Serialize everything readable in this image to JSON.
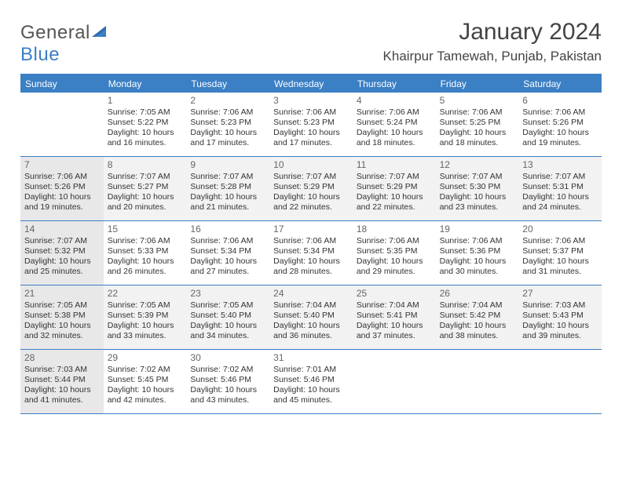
{
  "brand": {
    "text1": "General",
    "text2": "Blue"
  },
  "title": "January 2024",
  "location": "Khairpur Tamewah, Punjab, Pakistan",
  "dayHeaders": [
    "Sunday",
    "Monday",
    "Tuesday",
    "Wednesday",
    "Thursday",
    "Friday",
    "Saturday"
  ],
  "colors": {
    "accent": "#3b7fc4",
    "altRow": "#f2f2f2",
    "shadeCell": "#e8e8e8",
    "text": "#333333",
    "headerText": "#ffffff"
  },
  "weeks": [
    {
      "alt": false,
      "cells": [
        {
          "day": "",
          "sunrise": "",
          "sunset": "",
          "daylight": ""
        },
        {
          "day": "1",
          "sunrise": "Sunrise: 7:05 AM",
          "sunset": "Sunset: 5:22 PM",
          "daylight": "Daylight: 10 hours and 16 minutes."
        },
        {
          "day": "2",
          "sunrise": "Sunrise: 7:06 AM",
          "sunset": "Sunset: 5:23 PM",
          "daylight": "Daylight: 10 hours and 17 minutes."
        },
        {
          "day": "3",
          "sunrise": "Sunrise: 7:06 AM",
          "sunset": "Sunset: 5:23 PM",
          "daylight": "Daylight: 10 hours and 17 minutes."
        },
        {
          "day": "4",
          "sunrise": "Sunrise: 7:06 AM",
          "sunset": "Sunset: 5:24 PM",
          "daylight": "Daylight: 10 hours and 18 minutes."
        },
        {
          "day": "5",
          "sunrise": "Sunrise: 7:06 AM",
          "sunset": "Sunset: 5:25 PM",
          "daylight": "Daylight: 10 hours and 18 minutes."
        },
        {
          "day": "6",
          "sunrise": "Sunrise: 7:06 AM",
          "sunset": "Sunset: 5:26 PM",
          "daylight": "Daylight: 10 hours and 19 minutes."
        }
      ]
    },
    {
      "alt": true,
      "cells": [
        {
          "day": "7",
          "shade": true,
          "sunrise": "Sunrise: 7:06 AM",
          "sunset": "Sunset: 5:26 PM",
          "daylight": "Daylight: 10 hours and 19 minutes."
        },
        {
          "day": "8",
          "sunrise": "Sunrise: 7:07 AM",
          "sunset": "Sunset: 5:27 PM",
          "daylight": "Daylight: 10 hours and 20 minutes."
        },
        {
          "day": "9",
          "sunrise": "Sunrise: 7:07 AM",
          "sunset": "Sunset: 5:28 PM",
          "daylight": "Daylight: 10 hours and 21 minutes."
        },
        {
          "day": "10",
          "sunrise": "Sunrise: 7:07 AM",
          "sunset": "Sunset: 5:29 PM",
          "daylight": "Daylight: 10 hours and 22 minutes."
        },
        {
          "day": "11",
          "sunrise": "Sunrise: 7:07 AM",
          "sunset": "Sunset: 5:29 PM",
          "daylight": "Daylight: 10 hours and 22 minutes."
        },
        {
          "day": "12",
          "sunrise": "Sunrise: 7:07 AM",
          "sunset": "Sunset: 5:30 PM",
          "daylight": "Daylight: 10 hours and 23 minutes."
        },
        {
          "day": "13",
          "sunrise": "Sunrise: 7:07 AM",
          "sunset": "Sunset: 5:31 PM",
          "daylight": "Daylight: 10 hours and 24 minutes."
        }
      ]
    },
    {
      "alt": false,
      "cells": [
        {
          "day": "14",
          "shade": true,
          "sunrise": "Sunrise: 7:07 AM",
          "sunset": "Sunset: 5:32 PM",
          "daylight": "Daylight: 10 hours and 25 minutes."
        },
        {
          "day": "15",
          "sunrise": "Sunrise: 7:06 AM",
          "sunset": "Sunset: 5:33 PM",
          "daylight": "Daylight: 10 hours and 26 minutes."
        },
        {
          "day": "16",
          "sunrise": "Sunrise: 7:06 AM",
          "sunset": "Sunset: 5:34 PM",
          "daylight": "Daylight: 10 hours and 27 minutes."
        },
        {
          "day": "17",
          "sunrise": "Sunrise: 7:06 AM",
          "sunset": "Sunset: 5:34 PM",
          "daylight": "Daylight: 10 hours and 28 minutes."
        },
        {
          "day": "18",
          "sunrise": "Sunrise: 7:06 AM",
          "sunset": "Sunset: 5:35 PM",
          "daylight": "Daylight: 10 hours and 29 minutes."
        },
        {
          "day": "19",
          "sunrise": "Sunrise: 7:06 AM",
          "sunset": "Sunset: 5:36 PM",
          "daylight": "Daylight: 10 hours and 30 minutes."
        },
        {
          "day": "20",
          "sunrise": "Sunrise: 7:06 AM",
          "sunset": "Sunset: 5:37 PM",
          "daylight": "Daylight: 10 hours and 31 minutes."
        }
      ]
    },
    {
      "alt": true,
      "cells": [
        {
          "day": "21",
          "shade": true,
          "sunrise": "Sunrise: 7:05 AM",
          "sunset": "Sunset: 5:38 PM",
          "daylight": "Daylight: 10 hours and 32 minutes."
        },
        {
          "day": "22",
          "sunrise": "Sunrise: 7:05 AM",
          "sunset": "Sunset: 5:39 PM",
          "daylight": "Daylight: 10 hours and 33 minutes."
        },
        {
          "day": "23",
          "sunrise": "Sunrise: 7:05 AM",
          "sunset": "Sunset: 5:40 PM",
          "daylight": "Daylight: 10 hours and 34 minutes."
        },
        {
          "day": "24",
          "sunrise": "Sunrise: 7:04 AM",
          "sunset": "Sunset: 5:40 PM",
          "daylight": "Daylight: 10 hours and 36 minutes."
        },
        {
          "day": "25",
          "sunrise": "Sunrise: 7:04 AM",
          "sunset": "Sunset: 5:41 PM",
          "daylight": "Daylight: 10 hours and 37 minutes."
        },
        {
          "day": "26",
          "sunrise": "Sunrise: 7:04 AM",
          "sunset": "Sunset: 5:42 PM",
          "daylight": "Daylight: 10 hours and 38 minutes."
        },
        {
          "day": "27",
          "sunrise": "Sunrise: 7:03 AM",
          "sunset": "Sunset: 5:43 PM",
          "daylight": "Daylight: 10 hours and 39 minutes."
        }
      ]
    },
    {
      "alt": false,
      "cells": [
        {
          "day": "28",
          "shade": true,
          "sunrise": "Sunrise: 7:03 AM",
          "sunset": "Sunset: 5:44 PM",
          "daylight": "Daylight: 10 hours and 41 minutes."
        },
        {
          "day": "29",
          "sunrise": "Sunrise: 7:02 AM",
          "sunset": "Sunset: 5:45 PM",
          "daylight": "Daylight: 10 hours and 42 minutes."
        },
        {
          "day": "30",
          "sunrise": "Sunrise: 7:02 AM",
          "sunset": "Sunset: 5:46 PM",
          "daylight": "Daylight: 10 hours and 43 minutes."
        },
        {
          "day": "31",
          "sunrise": "Sunrise: 7:01 AM",
          "sunset": "Sunset: 5:46 PM",
          "daylight": "Daylight: 10 hours and 45 minutes."
        },
        {
          "day": "",
          "sunrise": "",
          "sunset": "",
          "daylight": ""
        },
        {
          "day": "",
          "sunrise": "",
          "sunset": "",
          "daylight": ""
        },
        {
          "day": "",
          "sunrise": "",
          "sunset": "",
          "daylight": ""
        }
      ]
    }
  ]
}
